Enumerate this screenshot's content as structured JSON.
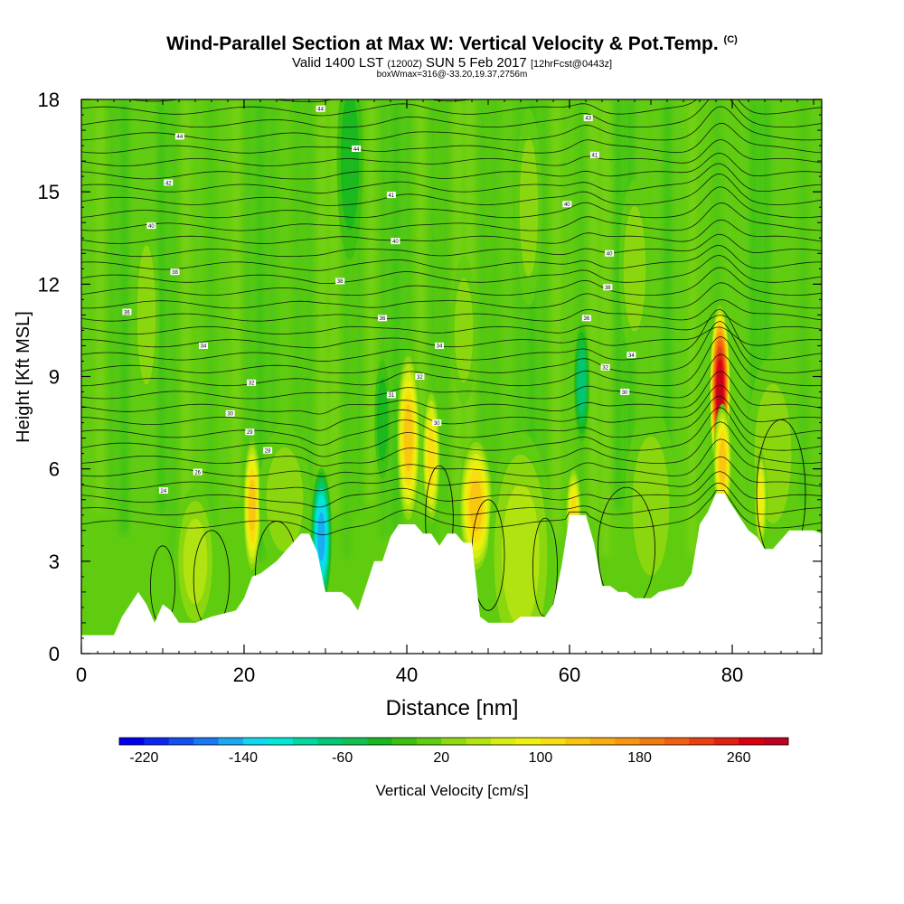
{
  "header": {
    "title": "Wind-Parallel Section at Max W: Vertical Velocity & Pot.Temp.",
    "copyright": "(C)",
    "valid_main": "Valid 1400 LST",
    "valid_z": "(1200Z)",
    "valid_date": "SUN 5 Feb 2017",
    "forecast": "[12hrFcst@0443z]",
    "box_info": "boxWmax=316@-33.20,19.37,2756m"
  },
  "chart_data": {
    "type": "heatmap",
    "xlabel": "Distance [nm]",
    "ylabel": "Height [Kft MSL]",
    "xlim": [
      0,
      91
    ],
    "ylim": [
      0,
      18
    ],
    "xticks": [
      0,
      20,
      40,
      60,
      80
    ],
    "yticks": [
      0,
      3,
      6,
      9,
      12,
      15,
      18
    ],
    "background_w": 0,
    "colorbar": {
      "label": "Vertical Velocity [cm/s]",
      "min": -240,
      "max": 300,
      "step": 20,
      "tick_labels": [
        -220,
        -140,
        -60,
        20,
        100,
        180,
        260
      ],
      "colors": [
        "#0000f0",
        "#0a28f0",
        "#1450f0",
        "#1a78f0",
        "#1aa8f0",
        "#10d8f0",
        "#00e8d8",
        "#00d8a0",
        "#00c878",
        "#10c050",
        "#18b820",
        "#3cc010",
        "#60cc10",
        "#90d810",
        "#b4e410",
        "#d8ee10",
        "#f0f010",
        "#f8dc10",
        "#f8c410",
        "#f8ac10",
        "#f89410",
        "#f07c10",
        "#f06010",
        "#e84010",
        "#e02010",
        "#d80010",
        "#c00020"
      ]
    },
    "terrain_kft": [
      [
        0,
        0.6
      ],
      [
        2,
        0.6
      ],
      [
        4,
        0.6
      ],
      [
        5,
        1.2
      ],
      [
        6,
        1.6
      ],
      [
        7,
        2.0
      ],
      [
        8,
        1.6
      ],
      [
        9,
        1.0
      ],
      [
        10,
        1.6
      ],
      [
        11,
        1.4
      ],
      [
        12,
        1.0
      ],
      [
        14,
        1.0
      ],
      [
        16,
        1.2
      ],
      [
        19,
        1.4
      ],
      [
        20,
        1.8
      ],
      [
        21,
        2.5
      ],
      [
        22,
        2.6
      ],
      [
        24,
        3.0
      ],
      [
        26,
        3.6
      ],
      [
        27,
        3.9
      ],
      [
        28,
        3.9
      ],
      [
        29,
        3.3
      ],
      [
        30,
        2.0
      ],
      [
        32,
        2.0
      ],
      [
        33,
        1.8
      ],
      [
        34,
        1.4
      ],
      [
        35,
        2.2
      ],
      [
        36,
        3.0
      ],
      [
        37,
        3.0
      ],
      [
        38,
        3.8
      ],
      [
        39,
        4.2
      ],
      [
        41,
        4.2
      ],
      [
        42,
        3.9
      ],
      [
        43,
        3.9
      ],
      [
        44,
        3.5
      ],
      [
        45,
        3.9
      ],
      [
        46,
        3.9
      ],
      [
        47,
        3.6
      ],
      [
        48,
        3.6
      ],
      [
        49,
        1.2
      ],
      [
        50,
        1.0
      ],
      [
        53,
        1.0
      ],
      [
        54,
        1.2
      ],
      [
        57,
        1.2
      ],
      [
        58,
        1.6
      ],
      [
        59,
        2.8
      ],
      [
        60,
        4.5
      ],
      [
        62,
        4.5
      ],
      [
        63,
        3.6
      ],
      [
        64,
        2.2
      ],
      [
        65,
        2.2
      ],
      [
        66,
        2.0
      ],
      [
        67,
        2.0
      ],
      [
        68,
        1.8
      ],
      [
        70,
        1.8
      ],
      [
        71,
        2.0
      ],
      [
        74,
        2.2
      ],
      [
        75,
        2.6
      ],
      [
        76,
        4.2
      ],
      [
        77,
        4.6
      ],
      [
        78,
        5.2
      ],
      [
        79,
        5.2
      ],
      [
        80,
        4.8
      ],
      [
        81,
        4.4
      ],
      [
        82,
        4.0
      ],
      [
        83,
        3.8
      ],
      [
        84,
        3.4
      ],
      [
        85,
        3.4
      ],
      [
        87,
        4.0
      ],
      [
        90,
        4.0
      ],
      [
        91,
        3.9
      ]
    ],
    "w_features": [
      {
        "x": 78.5,
        "z": 8.5,
        "sx": 0.8,
        "sz": 1.8,
        "w": 300
      },
      {
        "x": 78.8,
        "z": 6.2,
        "sx": 0.7,
        "sz": 1.2,
        "w": 140
      },
      {
        "x": 40.2,
        "z": 7.0,
        "sx": 0.9,
        "sz": 1.8,
        "w": 130
      },
      {
        "x": 43.0,
        "z": 6.4,
        "sx": 0.7,
        "sz": 1.4,
        "w": 110
      },
      {
        "x": 48.5,
        "z": 4.8,
        "sx": 1.3,
        "sz": 1.4,
        "w": 140
      },
      {
        "x": 21.0,
        "z": 4.8,
        "sx": 0.7,
        "sz": 1.4,
        "w": 130
      },
      {
        "x": 60.5,
        "z": 4.5,
        "sx": 0.6,
        "sz": 1.0,
        "w": 120
      },
      {
        "x": 29.5,
        "z": 3.8,
        "sx": 0.8,
        "sz": 1.4,
        "w": -150
      },
      {
        "x": 37.0,
        "z": 7.6,
        "sx": 0.6,
        "sz": 1.2,
        "w": -40
      },
      {
        "x": 61.5,
        "z": 8.8,
        "sx": 0.6,
        "sz": 1.2,
        "w": -70
      },
      {
        "x": 14.0,
        "z": 3.0,
        "sx": 1.6,
        "sz": 1.5,
        "w": 50
      },
      {
        "x": 54.0,
        "z": 3.2,
        "sx": 2.5,
        "sz": 2.5,
        "w": 45
      },
      {
        "x": 70.0,
        "z": 4.8,
        "sx": 2.0,
        "sz": 2.0,
        "w": 40
      },
      {
        "x": 85.0,
        "z": 6.5,
        "sx": 2.0,
        "sz": 2.0,
        "w": 35
      },
      {
        "x": 83.5,
        "z": 5.0,
        "sx": 0.5,
        "sz": 1.0,
        "w": 100
      },
      {
        "x": 25.0,
        "z": 5.0,
        "sx": 2.0,
        "sz": 1.5,
        "w": 30
      },
      {
        "x": 47.0,
        "z": 10.5,
        "sx": 1.0,
        "sz": 1.5,
        "w": 40
      },
      {
        "x": 8.0,
        "z": 11.0,
        "sx": 1.0,
        "sz": 2.0,
        "w": 35
      },
      {
        "x": 55.0,
        "z": 14.5,
        "sx": 1.0,
        "sz": 2.0,
        "w": 30
      },
      {
        "x": 68.0,
        "z": 12.5,
        "sx": 1.2,
        "sz": 1.8,
        "w": 35
      },
      {
        "x": 33.0,
        "z": 16.0,
        "sx": 1.0,
        "sz": 2.0,
        "w": -35
      }
    ],
    "contour_labels": [
      {
        "x": 29.4,
        "z": 17.7,
        "text": "44"
      },
      {
        "x": 12.1,
        "z": 16.8,
        "text": "44"
      },
      {
        "x": 33.8,
        "z": 16.4,
        "text": "44"
      },
      {
        "x": 62.3,
        "z": 17.4,
        "text": "43"
      },
      {
        "x": 63.1,
        "z": 16.2,
        "text": "41"
      },
      {
        "x": 10.7,
        "z": 15.3,
        "text": "42"
      },
      {
        "x": 38.1,
        "z": 14.9,
        "text": "41"
      },
      {
        "x": 59.7,
        "z": 14.6,
        "text": "40"
      },
      {
        "x": 8.6,
        "z": 13.9,
        "text": "40"
      },
      {
        "x": 38.6,
        "z": 13.4,
        "text": "40"
      },
      {
        "x": 64.9,
        "z": 13.0,
        "text": "40"
      },
      {
        "x": 11.5,
        "z": 12.4,
        "text": "38"
      },
      {
        "x": 31.8,
        "z": 12.1,
        "text": "38"
      },
      {
        "x": 64.7,
        "z": 11.9,
        "text": "38"
      },
      {
        "x": 5.6,
        "z": 11.1,
        "text": "36"
      },
      {
        "x": 37.0,
        "z": 10.9,
        "text": "36"
      },
      {
        "x": 62.1,
        "z": 10.9,
        "text": "36"
      },
      {
        "x": 15.0,
        "z": 10.0,
        "text": "34"
      },
      {
        "x": 44.0,
        "z": 10.0,
        "text": "34"
      },
      {
        "x": 67.6,
        "z": 9.7,
        "text": "34"
      },
      {
        "x": 41.6,
        "z": 9.0,
        "text": "32"
      },
      {
        "x": 64.4,
        "z": 9.3,
        "text": "32"
      },
      {
        "x": 20.9,
        "z": 8.8,
        "text": "32"
      },
      {
        "x": 38.1,
        "z": 8.4,
        "text": "31"
      },
      {
        "x": 66.8,
        "z": 8.5,
        "text": "30"
      },
      {
        "x": 18.3,
        "z": 7.8,
        "text": "30"
      },
      {
        "x": 43.7,
        "z": 7.5,
        "text": "30"
      },
      {
        "x": 20.7,
        "z": 7.2,
        "text": "29"
      },
      {
        "x": 22.9,
        "z": 6.6,
        "text": "28"
      },
      {
        "x": 14.3,
        "z": 5.9,
        "text": "26"
      },
      {
        "x": 10.1,
        "z": 5.3,
        "text": "24"
      }
    ]
  }
}
